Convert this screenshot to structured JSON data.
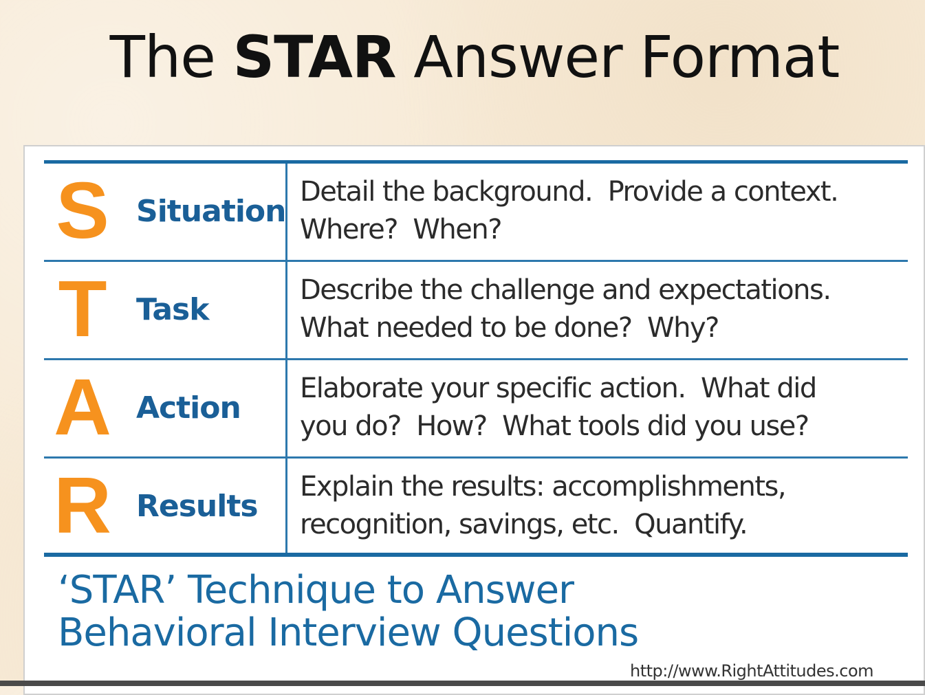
{
  "title": {
    "prefix": "The ",
    "bold": "STAR",
    "suffix": " Answer Format"
  },
  "rows": [
    {
      "letter": "S",
      "word": "Situation",
      "line1": "Detail the background.  Provide a context.",
      "line2": "Where?  When?"
    },
    {
      "letter": "T",
      "word": "Task",
      "line1": "Describe the challenge and expectations.",
      "line2": "What needed to be done?  Why?"
    },
    {
      "letter": "A",
      "word": "Action",
      "line1": "Elaborate your specific action.  What did",
      "line2": "you do?  How?  What tools did you use?"
    },
    {
      "letter": "R",
      "word": "Results",
      "line1": "Explain the results: accomplishments,",
      "line2": "recognition, savings, etc.  Quantify."
    }
  ],
  "caption": {
    "line1": "‘STAR’ Technique to Answer",
    "line2": "Behavioral Interview Questions"
  },
  "source_url": "http://www.RightAttitudes.com",
  "colors": {
    "accent_orange": "#f6921e",
    "brand_blue": "#1a6aa2",
    "background": "#f7ead6"
  }
}
